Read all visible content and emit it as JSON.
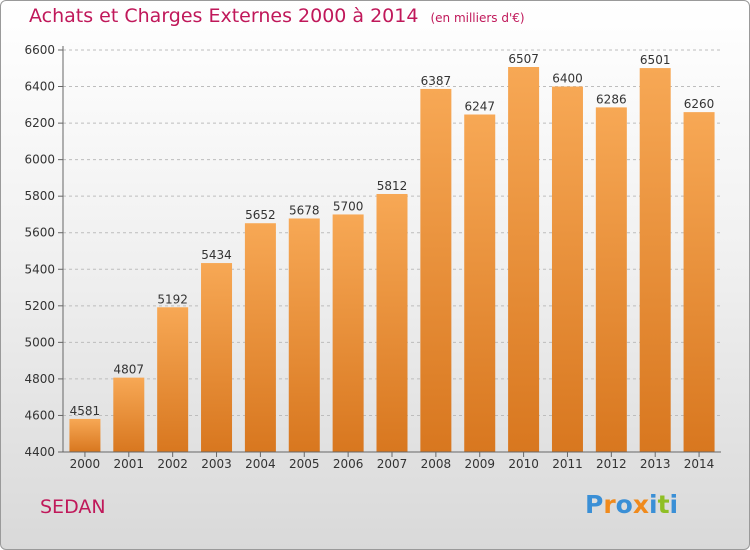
{
  "header": {
    "title": "Achats et Charges Externes 2000 à 2014",
    "unit": "(en milliers d'€)"
  },
  "footer": {
    "commune": "SEDAN",
    "brand": "Proxiti",
    "brand_colors": [
      "#3a8fd6",
      "#f08a1c",
      "#3a8fd6",
      "#f08a1c",
      "#3a8fd6",
      "#8fbf25",
      "#3a8fd6"
    ]
  },
  "colors": {
    "bar_light": "#f7a855",
    "bar_dark": "#d8771f",
    "text": "#333333",
    "title": "#c0185a"
  },
  "chart_data": {
    "type": "bar",
    "title": "Achats et Charges Externes 2000 à 2014",
    "categories": [
      "2000",
      "2001",
      "2002",
      "2003",
      "2004",
      "2005",
      "2006",
      "2007",
      "2008",
      "2009",
      "2010",
      "2011",
      "2012",
      "2013",
      "2014"
    ],
    "values": [
      4581,
      4807,
      5192,
      5434,
      5652,
      5678,
      5700,
      5812,
      6387,
      6247,
      6507,
      6400,
      6286,
      6501,
      6260
    ],
    "ylim": [
      4400,
      6600
    ],
    "yticks": [
      4400,
      4600,
      4800,
      5000,
      5200,
      5400,
      5600,
      5800,
      6000,
      6200,
      6400,
      6600
    ],
    "grid": true,
    "data_labels": true
  }
}
